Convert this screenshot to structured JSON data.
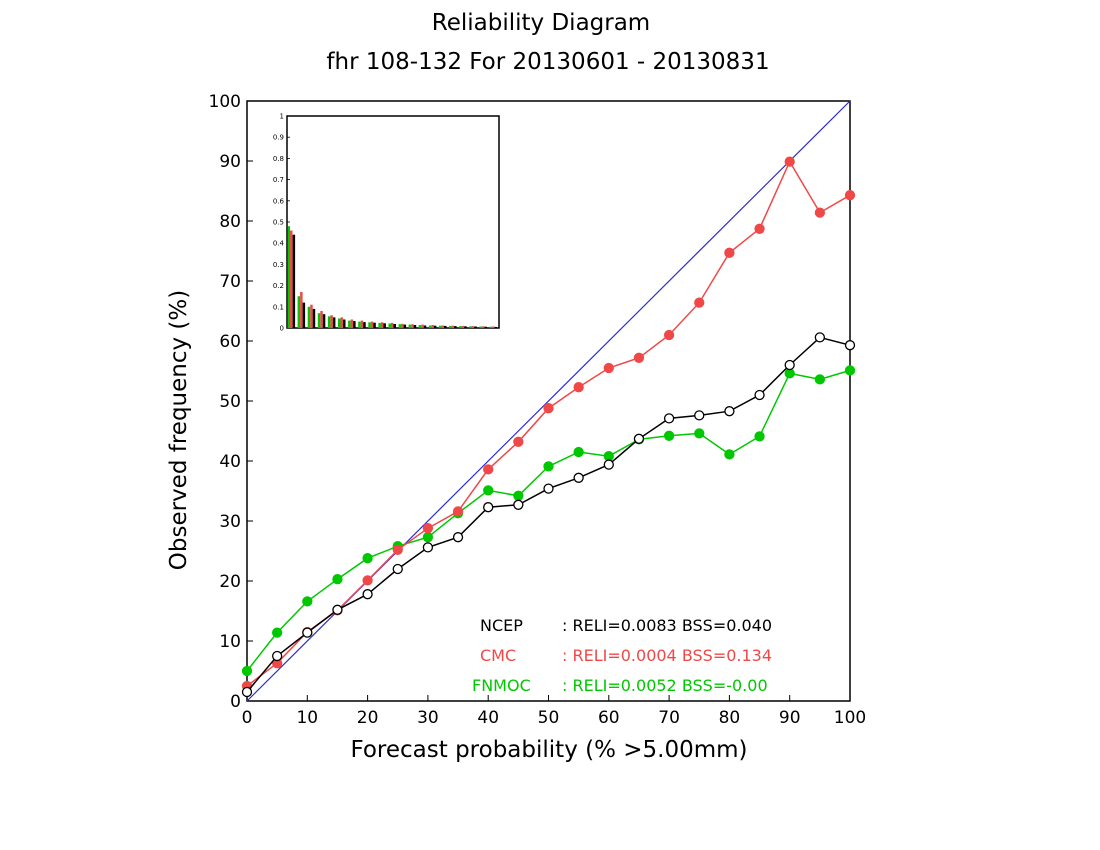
{
  "chart_data": {
    "type": "line",
    "title": "Reliability Diagram",
    "subtitle": "fhr 108-132 For 20130601 - 20130831",
    "xlabel": "Forecast probability (% >5.00mm)",
    "ylabel": "Observed frequency (%)",
    "xlim": [
      0,
      100
    ],
    "ylim": [
      0,
      100
    ],
    "xticks": [
      "0",
      "10",
      "20",
      "30",
      "40",
      "50",
      "60",
      "70",
      "80",
      "90",
      "100"
    ],
    "yticks": [
      "0",
      "10",
      "20",
      "30",
      "40",
      "50",
      "60",
      "70",
      "80",
      "90",
      "100"
    ],
    "grid": false,
    "x": [
      0,
      5,
      10,
      15,
      20,
      25,
      30,
      35,
      40,
      45,
      50,
      55,
      60,
      65,
      70,
      75,
      80,
      85,
      90,
      95,
      100
    ],
    "series": [
      {
        "name": "NCEP",
        "color": "#000000",
        "marker": "open-circle",
        "values": [
          1.5,
          7.5,
          11.4,
          15.2,
          17.8,
          22.0,
          25.6,
          27.3,
          32.3,
          32.7,
          35.4,
          37.2,
          39.4,
          43.7,
          47.1,
          47.6,
          48.3,
          51.0,
          56.0,
          60.6,
          59.3
        ],
        "legend": {
          "label": "NCEP",
          "stats": ": RELI=0.0083 BSS=0.040"
        }
      },
      {
        "name": "CMC",
        "color": "#f04848",
        "marker": "filled-circle",
        "values": [
          2.5,
          6.3,
          11.5,
          15.1,
          20.1,
          25.2,
          28.8,
          31.6,
          38.6,
          43.2,
          48.8,
          52.3,
          55.5,
          57.2,
          61.0,
          66.4,
          74.7,
          78.7,
          89.9,
          81.4,
          84.3
        ],
        "legend": {
          "label": "CMC",
          "stats": ": RELI=0.0004 BSS=0.134"
        }
      },
      {
        "name": "FNMOC",
        "color": "#00c800",
        "marker": "filled-circle",
        "values": [
          5.0,
          11.4,
          16.6,
          20.3,
          23.8,
          25.8,
          27.3,
          31.3,
          35.1,
          34.2,
          39.1,
          41.5,
          40.8,
          43.6,
          44.2,
          44.6,
          41.1,
          44.1,
          54.6,
          53.6,
          55.1
        ],
        "legend": {
          "label": "FNMOC",
          "stats": ": RELI=0.0052 BSS=-0.00"
        }
      }
    ],
    "diagonal_color": "#2a2ad0",
    "inset": {
      "type": "bar",
      "ylim": [
        0,
        1
      ],
      "yticks": [
        "0",
        "0.1",
        "0.2",
        "0.3",
        "0.4",
        "0.5",
        "0.6",
        "0.7",
        "0.8",
        "0.9",
        "1"
      ],
      "bins": [
        0,
        5,
        10,
        15,
        20,
        25,
        30,
        35,
        40,
        45,
        50,
        55,
        60,
        65,
        70,
        75,
        80,
        85,
        90,
        95,
        100
      ],
      "series": [
        {
          "name": "FNMOC",
          "color": "#00c800",
          "values": [
            0.48,
            0.15,
            0.1,
            0.07,
            0.055,
            0.045,
            0.035,
            0.03,
            0.027,
            0.024,
            0.021,
            0.018,
            0.016,
            0.014,
            0.012,
            0.011,
            0.01,
            0.009,
            0.008,
            0.007,
            0.006
          ]
        },
        {
          "name": "CMC",
          "color": "#f04848",
          "values": [
            0.46,
            0.17,
            0.11,
            0.08,
            0.06,
            0.05,
            0.04,
            0.035,
            0.03,
            0.027,
            0.024,
            0.02,
            0.018,
            0.016,
            0.014,
            0.012,
            0.011,
            0.01,
            0.009,
            0.008,
            0.007
          ]
        },
        {
          "name": "NCEP",
          "color": "#000000",
          "values": [
            0.44,
            0.12,
            0.09,
            0.065,
            0.05,
            0.04,
            0.033,
            0.028,
            0.025,
            0.022,
            0.019,
            0.016,
            0.014,
            0.012,
            0.011,
            0.01,
            0.009,
            0.008,
            0.007,
            0.006,
            0.005
          ]
        }
      ]
    }
  }
}
